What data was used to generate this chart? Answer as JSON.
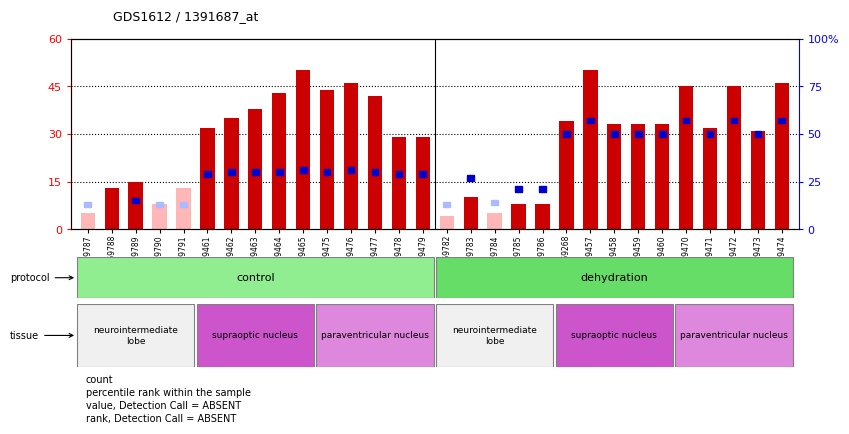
{
  "title": "GDS1612 / 1391687_at",
  "samples": [
    "GSM69787",
    "GSM69788",
    "GSM69789",
    "GSM69790",
    "GSM69791",
    "GSM69461",
    "GSM69462",
    "GSM69463",
    "GSM69464",
    "GSM69465",
    "GSM69475",
    "GSM69476",
    "GSM69477",
    "GSM69478",
    "GSM69479",
    "GSM69782",
    "GSM69783",
    "GSM69784",
    "GSM69785",
    "GSM69786",
    "GSM69268",
    "GSM69457",
    "GSM69458",
    "GSM69459",
    "GSM69460",
    "GSM69470",
    "GSM69471",
    "GSM69472",
    "GSM69473",
    "GSM69474"
  ],
  "count_values": [
    5,
    13,
    15,
    8,
    13,
    32,
    35,
    38,
    43,
    50,
    44,
    46,
    42,
    29,
    29,
    4,
    10,
    5,
    8,
    8,
    34,
    50,
    33,
    33,
    33,
    45,
    32,
    45,
    31,
    46
  ],
  "rank_values": [
    13,
    null,
    15,
    13,
    13,
    29,
    30,
    30,
    30,
    31,
    30,
    31,
    30,
    29,
    29,
    13,
    27,
    14,
    21,
    21,
    50,
    57,
    50,
    50,
    50,
    57,
    50,
    57,
    50,
    57
  ],
  "absent": [
    true,
    false,
    false,
    true,
    true,
    false,
    false,
    false,
    false,
    false,
    false,
    false,
    false,
    false,
    false,
    true,
    false,
    true,
    false,
    false,
    false,
    false,
    false,
    false,
    false,
    false,
    false,
    false,
    false,
    false
  ],
  "protocol_groups": [
    {
      "label": "control",
      "start": 0,
      "end": 14,
      "color": "#90ee90"
    },
    {
      "label": "dehydration",
      "start": 15,
      "end": 29,
      "color": "#66dd66"
    }
  ],
  "tissue_groups": [
    {
      "label": "neurointermediate\nlobe",
      "start": 0,
      "end": 4,
      "color": "#f5f5f5"
    },
    {
      "label": "supraoptic nucleus",
      "start": 5,
      "end": 9,
      "color": "#cc55cc"
    },
    {
      "label": "paraventricular nucleus",
      "start": 10,
      "end": 14,
      "color": "#dd88dd"
    },
    {
      "label": "neurointermediate\nlobe",
      "start": 15,
      "end": 19,
      "color": "#f5f5f5"
    },
    {
      "label": "supraoptic nucleus",
      "start": 20,
      "end": 24,
      "color": "#cc55cc"
    },
    {
      "label": "paraventricular nucleus",
      "start": 25,
      "end": 29,
      "color": "#dd88dd"
    }
  ],
  "left_ylim": [
    0,
    60
  ],
  "right_ylim": [
    0,
    100
  ],
  "left_yticks": [
    0,
    15,
    30,
    45,
    60
  ],
  "right_yticks": [
    0,
    25,
    50,
    75,
    100
  ],
  "right_yticklabels": [
    "0",
    "25",
    "50",
    "75",
    "100%"
  ],
  "bar_color_present": "#cc0000",
  "bar_color_absent": "#ffb6b6",
  "rank_color_present": "#0000cc",
  "rank_color_absent": "#aabbff",
  "bg_color": "#ffffff"
}
